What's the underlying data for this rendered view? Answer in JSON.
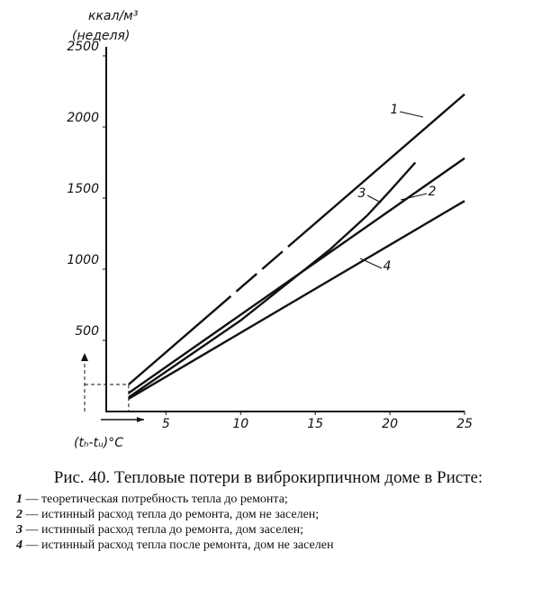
{
  "chart_data": {
    "type": "line",
    "y_unit": "ккал/м³",
    "y_unit_period": "(неделя)",
    "x_label": "(tₕ-tᵤ)°C",
    "xlim": [
      1,
      25
    ],
    "xticks": [
      5,
      10,
      15,
      20,
      25
    ],
    "ylim": [
      0,
      2500
    ],
    "yticks": [
      500,
      1000,
      1500,
      2000,
      2500
    ],
    "series": [
      {
        "name": "1",
        "color": "#111111",
        "x": [
          2.5,
          25
        ],
        "values": [
          190,
          2230
        ]
      },
      {
        "name": "2",
        "color": "#111111",
        "x": [
          2.5,
          25
        ],
        "values": [
          130,
          1780
        ]
      },
      {
        "name": "3",
        "color": "#111111",
        "x": [
          2.5,
          10,
          16,
          18.5,
          20,
          21.7
        ],
        "values": [
          100,
          640,
          1140,
          1380,
          1550,
          1750
        ]
      },
      {
        "name": "4",
        "color": "#111111",
        "x": [
          2.5,
          25
        ],
        "values": [
          90,
          1480
        ]
      }
    ],
    "title": "Рис. 40. Тепловые потери в виброкирпичном доме в Ристе:",
    "notes": [
      "— теоретическая потребность тепла до ремонта;",
      "— истинный расход тепла до ремонта, дом не заселен;",
      "— истинный расход тепла до ремонта, дом заселен;",
      "— истинный расход тепла после ремонта, дом не заселен"
    ]
  }
}
